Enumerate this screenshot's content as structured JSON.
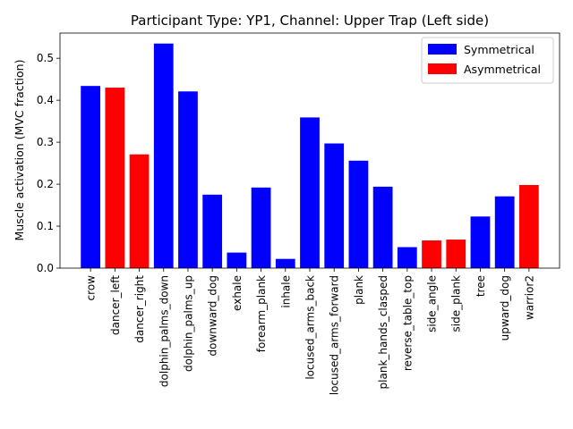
{
  "chart_data": {
    "type": "bar",
    "title": "Participant Type: YP1, Channel: Upper Trap (Left side)",
    "xlabel": "",
    "ylabel": "Muscle activation (MVC fraction)",
    "ylim": [
      0,
      0.56
    ],
    "yticks": [
      "0.0",
      "0.1",
      "0.2",
      "0.3",
      "0.4",
      "0.5"
    ],
    "grid": false,
    "legend_position": "top-right",
    "legend": [
      {
        "label": "Symmetrical",
        "color": "#0000ff"
      },
      {
        "label": "Asymmetrical",
        "color": "#ff0000"
      }
    ],
    "categories": [
      "crow",
      "dancer_left",
      "dancer_right",
      "dolphin_palms_down",
      "dolphin_palms_up",
      "downward_dog",
      "exhale",
      "forearm_plank",
      "inhale",
      "locused_arms_back",
      "locused_arms_forward",
      "plank",
      "plank_hands_clasped",
      "reverse_table_top",
      "side_angle",
      "side_plank",
      "tree",
      "upward_dog",
      "warrior2"
    ],
    "values": [
      0.434,
      0.43,
      0.271,
      0.535,
      0.421,
      0.175,
      0.037,
      0.192,
      0.022,
      0.359,
      0.297,
      0.256,
      0.194,
      0.05,
      0.066,
      0.068,
      0.123,
      0.171,
      0.198
    ],
    "groups": [
      "Symmetrical",
      "Asymmetrical",
      "Asymmetrical",
      "Symmetrical",
      "Symmetrical",
      "Symmetrical",
      "Symmetrical",
      "Symmetrical",
      "Symmetrical",
      "Symmetrical",
      "Symmetrical",
      "Symmetrical",
      "Symmetrical",
      "Symmetrical",
      "Asymmetrical",
      "Asymmetrical",
      "Symmetrical",
      "Symmetrical",
      "Asymmetrical"
    ]
  }
}
